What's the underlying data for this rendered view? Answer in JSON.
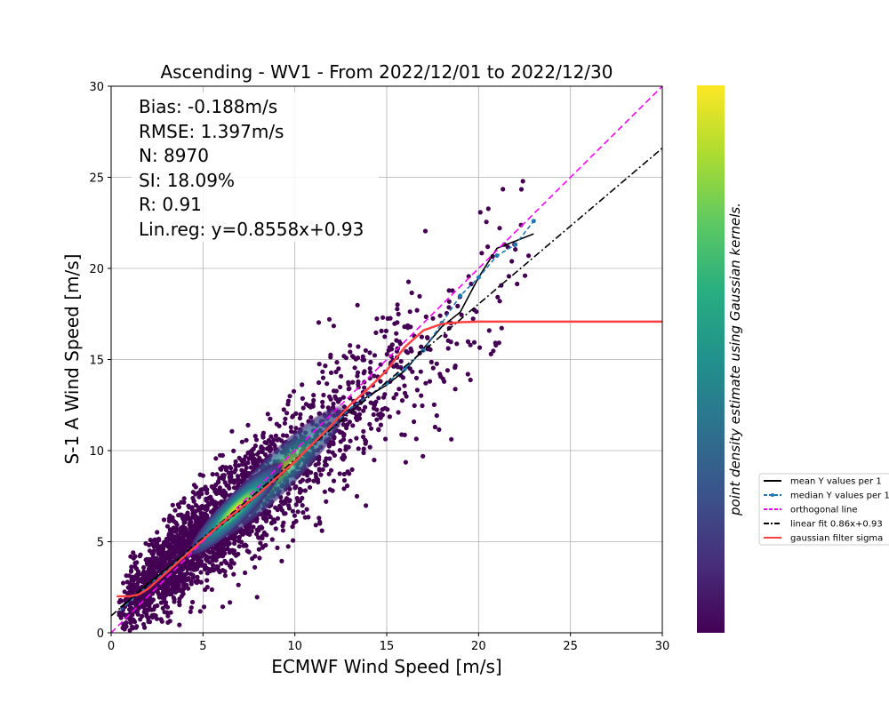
{
  "chart_data": {
    "type": "scatter",
    "title": "Ascending - WV1 - From 2022/12/01 to 2022/12/30",
    "xlabel": "ECMWF Wind Speed [m/s]",
    "ylabel": "S-1 A Wind Speed [m/s]",
    "xlim": [
      0,
      30
    ],
    "ylim": [
      0,
      30
    ],
    "xticks": [
      "0",
      "5",
      "10",
      "15",
      "20",
      "25",
      "30"
    ],
    "yticks": [
      "0",
      "5",
      "10",
      "15",
      "20",
      "25",
      "30"
    ],
    "grid": true,
    "colorbar_label": "point density estimate using Gaussian kernels.",
    "colormap": "viridis",
    "stats": {
      "bias": "Bias: -0.188m/s",
      "rmse": "RMSE: 1.397m/s",
      "n": "N: 8970",
      "si": "SI: 18.09%",
      "r": "R: 0.91",
      "linreg": "Lin.reg: y=0.8558x+0.93"
    },
    "legend_position": "right-outside",
    "series": [
      {
        "name": "mean Y values per 1",
        "style": "solid",
        "color": "#000000",
        "x": [
          0.5,
          1,
          2,
          3,
          4,
          5,
          6,
          7,
          8,
          9,
          10,
          11,
          12,
          13,
          14,
          15,
          16,
          17,
          18,
          19,
          20,
          21,
          22,
          23
        ],
        "y": [
          1.4,
          1.8,
          2.7,
          3.5,
          4.3,
          5.1,
          5.9,
          6.7,
          7.6,
          8.4,
          9.4,
          10.4,
          11.4,
          12.3,
          13.0,
          13.6,
          14.4,
          15.6,
          16.8,
          17.6,
          19.5,
          21.1,
          21.5,
          21.9
        ]
      },
      {
        "name": "median Y values per 1",
        "style": "dashed-dots",
        "color": "#1f77b4",
        "x": [
          0.5,
          1,
          2,
          3,
          4,
          5,
          6,
          7,
          8,
          9,
          10,
          11,
          12,
          13,
          14,
          15,
          16,
          17,
          18,
          19,
          20,
          21,
          22,
          23
        ],
        "y": [
          1.2,
          1.7,
          2.6,
          3.4,
          4.3,
          5.1,
          5.9,
          6.7,
          7.6,
          8.4,
          9.4,
          10.4,
          11.3,
          12.3,
          13.0,
          13.7,
          14.5,
          15.5,
          17.0,
          18.5,
          19.5,
          20.7,
          21.3,
          22.6
        ]
      },
      {
        "name": "orthogonal line",
        "style": "dashed",
        "color": "#ff00ff",
        "x": [
          0,
          30
        ],
        "y": [
          0,
          30
        ]
      },
      {
        "name": "linear fit 0.86x+0.93",
        "style": "dashdot",
        "color": "#000000",
        "x": [
          0,
          30
        ],
        "y": [
          0.93,
          26.6
        ]
      },
      {
        "name": "gaussian filter sigma",
        "style": "solid",
        "color": "#ff4040",
        "x": [
          0.3,
          1,
          1.5,
          2,
          3,
          4,
          5,
          6,
          7,
          8,
          9,
          10,
          11,
          12,
          13,
          14,
          15,
          16,
          17,
          18,
          19,
          20,
          25,
          30
        ],
        "y": [
          2.0,
          2.0,
          2.1,
          2.4,
          3.3,
          4.2,
          5.1,
          6.0,
          6.8,
          7.6,
          8.5,
          9.4,
          10.4,
          11.4,
          12.5,
          13.4,
          14.4,
          15.7,
          16.6,
          16.95,
          17.05,
          17.08,
          17.08,
          17.08
        ]
      }
    ]
  }
}
